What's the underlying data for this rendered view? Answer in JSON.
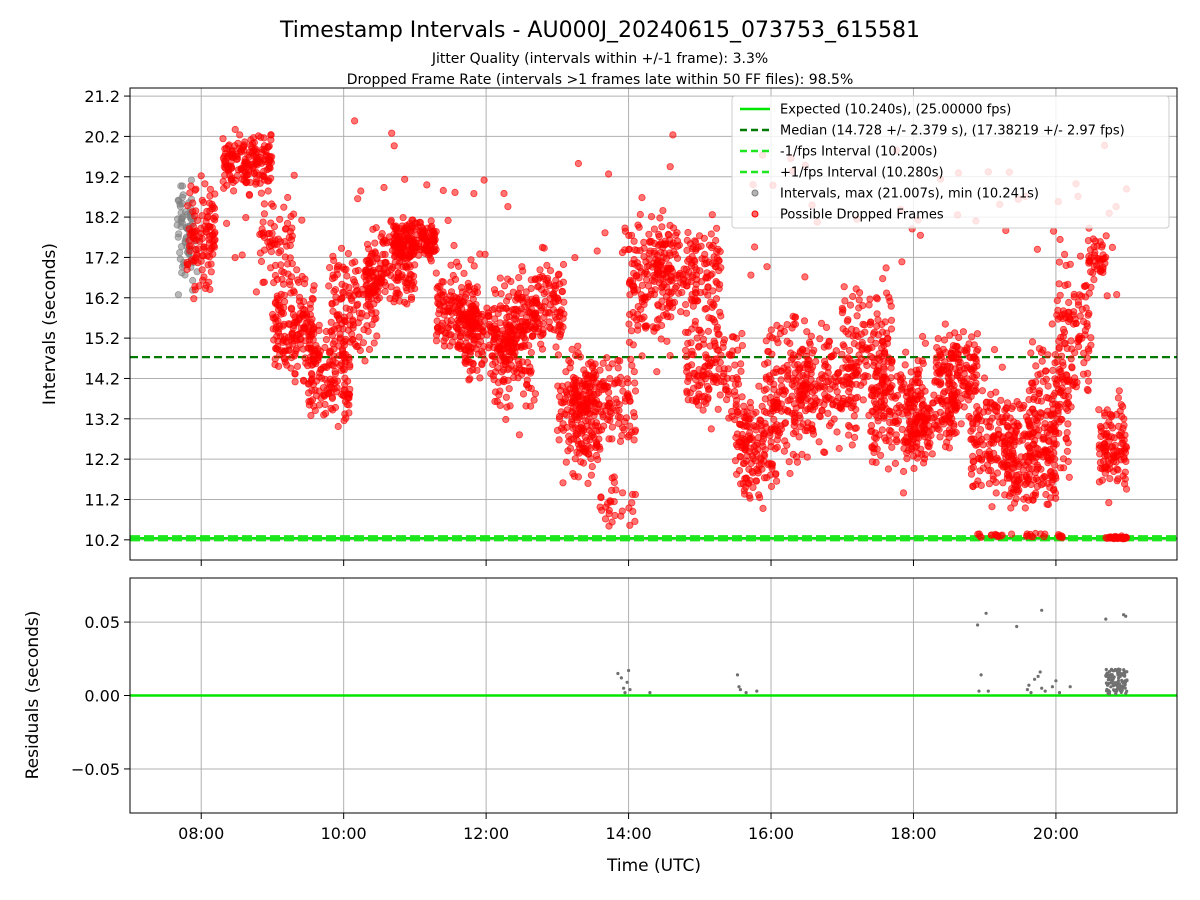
{
  "chart_data": {
    "title": "Timestamp Intervals - AU000J_20240615_073753_615581",
    "subtitle_lines": [
      "Jitter Quality (intervals within +/-1 frame): 3.3%",
      "Dropped Frame Rate (intervals >1 frames late within 50 FF files): 98.5%"
    ],
    "xlabel": "Time (UTC)",
    "x_ticks": [
      "08:00",
      "10:00",
      "12:00",
      "14:00",
      "16:00",
      "18:00",
      "20:00"
    ],
    "x_range_hours": [
      7.0,
      21.7
    ],
    "panels": [
      {
        "type": "scatter",
        "ylabel": "Intervals (seconds)",
        "ylim": [
          9.7,
          21.4
        ],
        "y_ticks": [
          "10.2",
          "11.2",
          "12.2",
          "13.2",
          "14.2",
          "15.2",
          "16.2",
          "17.2",
          "18.2",
          "19.2",
          "20.2",
          "21.2"
        ],
        "grid": true,
        "legend_position": "top-right",
        "legend": [
          "Expected (10.240s), (25.00000 fps)",
          "Median (14.728 +/- 2.379 s), (17.38219 +/- 2.97 fps)",
          "-1/fps Interval (10.200s)",
          "+1/fps Interval (10.280s)",
          "Intervals, max (21.007s), min (10.241s)",
          "Possible Dropped Frames"
        ],
        "lines": {
          "expected": 10.24,
          "median": 14.728,
          "minus_interval": 10.2,
          "plus_interval": 10.28
        },
        "colors": {
          "expected": "#00e600",
          "median": "#007a00",
          "interval_lines": "#1ee61e",
          "normal_points": "#808080",
          "dropped_points": "#ff0000"
        },
        "series": [
          {
            "name": "Intervals, max (21.007s), min (10.241s)",
            "clusters": [
              {
                "x": [
                  7.65,
                  7.95
                ],
                "y": [
                  15.8,
                  19.6
                ],
                "n": 70
              }
            ]
          },
          {
            "name": "Possible Dropped Frames",
            "clusters": [
              {
                "x": [
                  7.8,
                  8.2
                ],
                "y": [
                  15.8,
                  19.6
                ],
                "n": 110
              },
              {
                "x": [
                  8.3,
                  9.0
                ],
                "y": [
                  18.6,
                  20.6
                ],
                "n": 170
              },
              {
                "x": [
                  8.8,
                  9.3
                ],
                "y": [
                  16.2,
                  19.0
                ],
                "n": 60
              },
              {
                "x": [
                  9.0,
                  9.6
                ],
                "y": [
                  13.6,
                  17.3
                ],
                "n": 170
              },
              {
                "x": [
                  9.5,
                  10.1
                ],
                "y": [
                  12.3,
                  16.0
                ],
                "n": 150
              },
              {
                "x": [
                  9.8,
                  10.5
                ],
                "y": [
                  14.0,
                  18.0
                ],
                "n": 130
              },
              {
                "x": [
                  10.3,
                  11.0
                ],
                "y": [
                  15.5,
                  18.3
                ],
                "n": 170
              },
              {
                "x": [
                  10.7,
                  11.3
                ],
                "y": [
                  16.9,
                  18.4
                ],
                "n": 170
              },
              {
                "x": [
                  11.3,
                  11.9
                ],
                "y": [
                  14.2,
                  17.4
                ],
                "n": 170
              },
              {
                "x": [
                  11.7,
                  12.4
                ],
                "y": [
                  13.8,
                  16.6
                ],
                "n": 150
              },
              {
                "x": [
                  12.1,
                  12.7
                ],
                "y": [
                  12.5,
                  17.3
                ],
                "n": 130
              },
              {
                "x": [
                  12.4,
                  13.1
                ],
                "y": [
                  14.6,
                  17.4
                ],
                "n": 150
              },
              {
                "x": [
                  13.0,
                  13.6
                ],
                "y": [
                  11.0,
                  15.2
                ],
                "n": 150
              },
              {
                "x": [
                  13.2,
                  14.1
                ],
                "y": [
                  12.0,
                  15.4
                ],
                "n": 170
              },
              {
                "x": [
                  13.6,
                  14.1
                ],
                "y": [
                  10.2,
                  12.0
                ],
                "n": 30
              },
              {
                "x": [
                  14.0,
                  14.6
                ],
                "y": [
                  14.0,
                  19.2
                ],
                "n": 150
              },
              {
                "x": [
                  14.4,
                  15.3
                ],
                "y": [
                  15.0,
                  18.6
                ],
                "n": 170
              },
              {
                "x": [
                  14.8,
                  15.6
                ],
                "y": [
                  12.6,
                  16.3
                ],
                "n": 150
              },
              {
                "x": [
                  15.5,
                  16.1
                ],
                "y": [
                  10.4,
                  14.5
                ],
                "n": 150
              },
              {
                "x": [
                  15.9,
                  16.6
                ],
                "y": [
                  11.5,
                  16.5
                ],
                "n": 150
              },
              {
                "x": [
                  16.3,
                  17.2
                ],
                "y": [
                  12.0,
                  16.0
                ],
                "n": 170
              },
              {
                "x": [
                  17.0,
                  17.7
                ],
                "y": [
                  12.3,
                  17.3
                ],
                "n": 150
              },
              {
                "x": [
                  17.4,
                  18.2
                ],
                "y": [
                  11.2,
                  15.5
                ],
                "n": 170
              },
              {
                "x": [
                  17.9,
                  18.6
                ],
                "y": [
                  11.8,
                  14.6
                ],
                "n": 150
              },
              {
                "x": [
                  18.3,
                  18.9
                ],
                "y": [
                  12.8,
                  16.0
                ],
                "n": 150
              },
              {
                "x": [
                  18.8,
                  19.5
                ],
                "y": [
                  10.3,
                  15.0
                ],
                "n": 170
              },
              {
                "x": [
                  19.3,
                  20.0
                ],
                "y": [
                  10.5,
                  14.0
                ],
                "n": 170
              },
              {
                "x": [
                  19.6,
                  20.2
                ],
                "y": [
                  11.0,
                  16.0
                ],
                "n": 130
              },
              {
                "x": [
                  20.0,
                  20.5
                ],
                "y": [
                  13.0,
                  18.0
                ],
                "n": 110
              },
              {
                "x": [
                  20.45,
                  20.7
                ],
                "y": [
                  16.5,
                  18.0
                ],
                "n": 40
              },
              {
                "x": [
                  20.6,
                  21.0
                ],
                "y": [
                  10.8,
                  14.3
                ],
                "n": 110
              },
              {
                "x": [
                  20.7,
                  21.0
                ],
                "y": [
                  10.2,
                  10.3
                ],
                "n": 40
              },
              {
                "x": [
                  18.9,
                  20.1
                ],
                "y": [
                  10.2,
                  10.4
                ],
                "n": 30
              },
              {
                "x": [
                  7.9,
                  21.0
                ],
                "y": [
                  15.0,
                  21.0
                ],
                "n": 110
              }
            ]
          }
        ]
      },
      {
        "type": "scatter",
        "ylabel": "Residuals (seconds)",
        "ylim": [
          -0.08,
          0.08
        ],
        "y_ticks": [
          "0.05",
          "0.00",
          "−0.05"
        ],
        "y_tick_values": [
          0.05,
          0.0,
          -0.05
        ],
        "grid": true,
        "zero_line_color": "#00e600",
        "point_color": "#707070",
        "points": [
          [
            13.85,
            0.015
          ],
          [
            13.9,
            0.012
          ],
          [
            13.93,
            0.005
          ],
          [
            13.95,
            0.002
          ],
          [
            13.98,
            0.009
          ],
          [
            14.0,
            0.017
          ],
          [
            14.02,
            0.004
          ],
          [
            14.3,
            0.002
          ],
          [
            15.53,
            0.014
          ],
          [
            15.55,
            0.006
          ],
          [
            15.57,
            0.004
          ],
          [
            15.65,
            0.002
          ],
          [
            15.8,
            0.003
          ],
          [
            18.9,
            0.048
          ],
          [
            18.95,
            0.014
          ],
          [
            18.92,
            0.003
          ],
          [
            19.05,
            0.003
          ],
          [
            19.02,
            0.056
          ],
          [
            19.45,
            0.047
          ],
          [
            19.8,
            0.058
          ],
          [
            19.6,
            0.004
          ],
          [
            19.62,
            0.007
          ],
          [
            19.65,
            0.002
          ],
          [
            19.7,
            0.011
          ],
          [
            19.75,
            0.013
          ],
          [
            19.78,
            0.016
          ],
          [
            19.8,
            0.005
          ],
          [
            19.85,
            0.003
          ],
          [
            19.95,
            0.006
          ],
          [
            20.0,
            0.01
          ],
          [
            20.05,
            0.002
          ],
          [
            20.2,
            0.006
          ],
          [
            20.7,
            0.052
          ],
          [
            20.95,
            0.055
          ],
          [
            20.98,
            0.054
          ]
        ],
        "dense_cluster": {
          "x": [
            20.7,
            21.0
          ],
          "y": [
            0.001,
            0.018
          ],
          "n": 110
        }
      }
    ]
  }
}
